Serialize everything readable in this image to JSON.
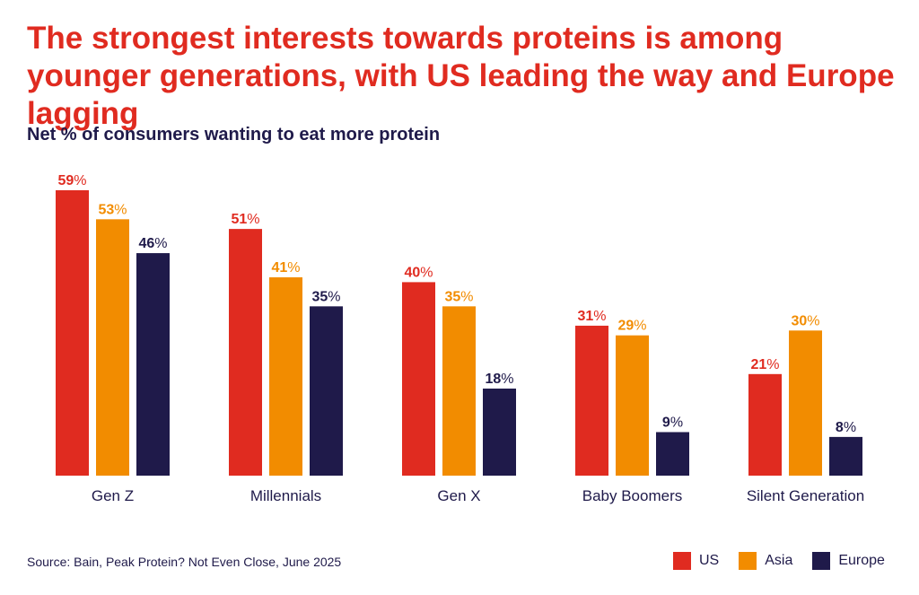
{
  "title": "The strongest interests towards proteins is among younger generations, with US leading the way and Europe lagging",
  "subtitle": "Net % of consumers wanting to eat more protein",
  "source": "Source: Bain, Peak Protein? Not Even Close, June 2025",
  "colors": {
    "us": "#e02b20",
    "asia": "#f28c00",
    "europe": "#1f1a4a",
    "text": "#1f1a4a"
  },
  "chart_data": {
    "type": "bar",
    "title": "Net % of consumers wanting to eat more protein",
    "categories": [
      "Gen Z",
      "Millennials",
      "Gen X",
      "Baby Boomers",
      "Silent Generation"
    ],
    "series": [
      {
        "name": "US",
        "color": "#e02b20",
        "values": [
          59,
          51,
          40,
          31,
          21
        ]
      },
      {
        "name": "Asia",
        "color": "#f28c00",
        "values": [
          53,
          41,
          35,
          29,
          30
        ]
      },
      {
        "name": "Europe",
        "color": "#1f1a4a",
        "values": [
          46,
          35,
          18,
          9,
          8
        ]
      }
    ],
    "value_suffix": "%",
    "ylim": [
      0,
      59
    ],
    "grid": false,
    "legend_position": "bottom-right",
    "xlabel": "",
    "ylabel": ""
  },
  "legend": [
    {
      "label": "US",
      "color": "#e02b20"
    },
    {
      "label": "Asia",
      "color": "#f28c00"
    },
    {
      "label": "Europe",
      "color": "#1f1a4a"
    }
  ]
}
